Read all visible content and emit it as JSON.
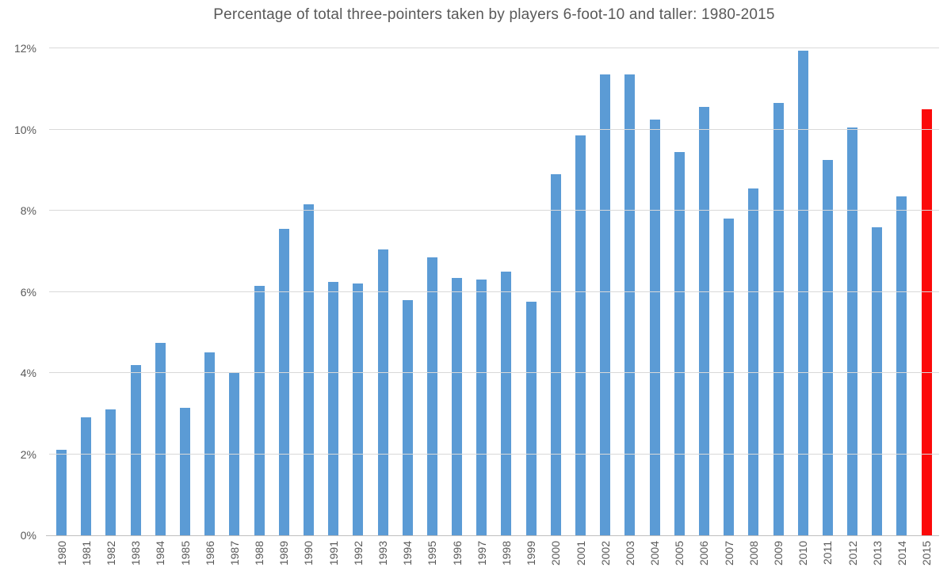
{
  "chart_data": {
    "type": "bar",
    "title": "Percentage of total three-pointers taken by players 6-foot-10 and taller: 1980-2015",
    "xlabel": "",
    "ylabel": "",
    "categories": [
      "1980",
      "1981",
      "1982",
      "1983",
      "1984",
      "1985",
      "1986",
      "1987",
      "1988",
      "1989",
      "1990",
      "1991",
      "1992",
      "1993",
      "1994",
      "1995",
      "1996",
      "1997",
      "1998",
      "1999",
      "2000",
      "2001",
      "2002",
      "2003",
      "2004",
      "2005",
      "2006",
      "2007",
      "2008",
      "2009",
      "2010",
      "2011",
      "2012",
      "2013",
      "2014",
      "2015"
    ],
    "values": [
      2.1,
      2.9,
      3.1,
      4.2,
      4.75,
      3.15,
      4.5,
      4.0,
      6.15,
      7.55,
      8.15,
      6.25,
      6.2,
      7.05,
      5.8,
      6.85,
      6.35,
      6.3,
      6.5,
      5.75,
      8.9,
      9.85,
      11.35,
      11.35,
      10.25,
      9.45,
      10.55,
      7.8,
      8.55,
      10.65,
      11.95,
      9.25,
      10.05,
      7.6,
      8.35,
      10.5
    ],
    "ylim": [
      0,
      12
    ],
    "ytick_step": 2,
    "y_tick_labels": [
      "0%",
      "2%",
      "4%",
      "6%",
      "8%",
      "10%",
      "12%"
    ],
    "grid": "horizontal",
    "legend": "none",
    "colors": {
      "bar": "#5B9BD5",
      "highlight": "#FB0A0A",
      "gridline": "#D9D9D9",
      "axis_line": "#BFBFBF",
      "text": "#595959"
    },
    "highlight_category": "2015"
  }
}
